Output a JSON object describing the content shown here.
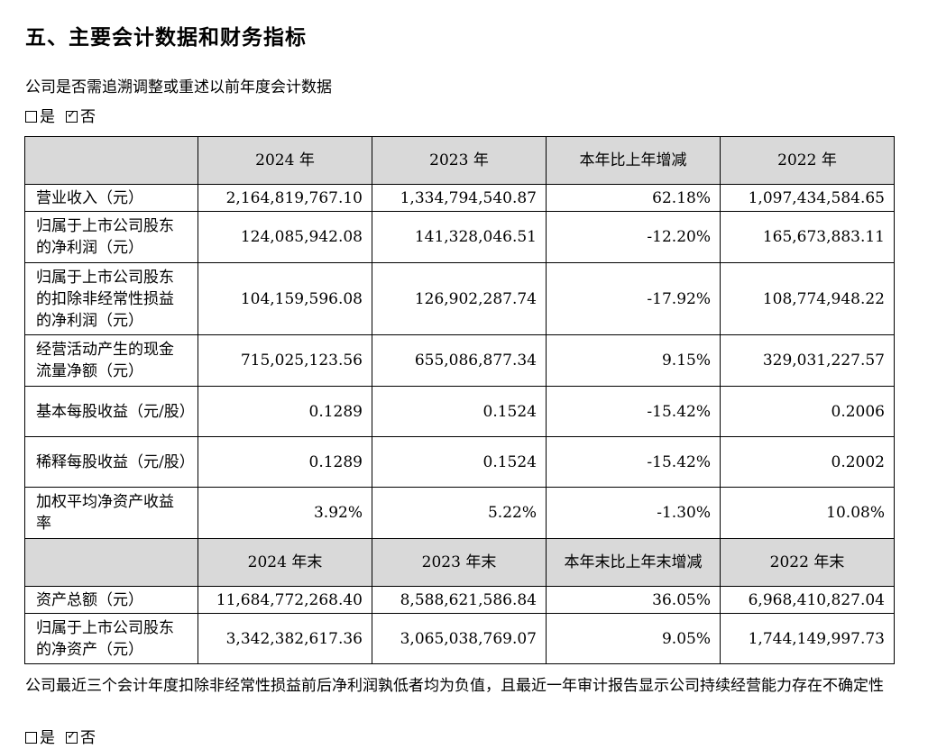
{
  "title": "五、主要会计数据和财务指标",
  "restate_question": "公司是否需追溯调整或重述以前年度会计数据",
  "restate_options": {
    "yes": "是",
    "no": "否"
  },
  "header1": [
    "",
    "2024 年",
    "2023 年",
    "本年比上年增减",
    "2022 年"
  ],
  "rows1": [
    {
      "label": "营业收入（元）",
      "values": [
        "2,164,819,767.10",
        "1,334,794,540.87",
        "62.18%",
        "1,097,434,584.65"
      ]
    },
    {
      "label": "归属于上市公司股东的净利润（元）",
      "values": [
        "124,085,942.08",
        "141,328,046.51",
        "-12.20%",
        "165,673,883.11"
      ]
    },
    {
      "label": "归属于上市公司股东的扣除非经常性损益的净利润（元）",
      "values": [
        "104,159,596.08",
        "126,902,287.74",
        "-17.92%",
        "108,774,948.22"
      ]
    },
    {
      "label": "经营活动产生的现金流量净额（元）",
      "values": [
        "715,025,123.56",
        "655,086,877.34",
        "9.15%",
        "329,031,227.57"
      ]
    },
    {
      "label": "基本每股收益（元/股）",
      "values": [
        "0.1289",
        "0.1524",
        "-15.42%",
        "0.2006"
      ]
    },
    {
      "label": "稀释每股收益（元/股）",
      "values": [
        "0.1289",
        "0.1524",
        "-15.42%",
        "0.2002"
      ]
    },
    {
      "label": "加权平均净资产收益率",
      "values": [
        "3.92%",
        "5.22%",
        "-1.30%",
        "10.08%"
      ]
    }
  ],
  "header2": [
    "",
    "2024 年末",
    "2023 年末",
    "本年末比上年末增减",
    "2022 年末"
  ],
  "rows2": [
    {
      "label": "资产总额（元）",
      "values": [
        "11,684,772,268.40",
        "8,588,621,586.84",
        "36.05%",
        "6,968,410,827.04"
      ]
    },
    {
      "label": "归属于上市公司股东的净资产（元）",
      "values": [
        "3,342,382,617.36",
        "3,065,038,769.07",
        "9.05%",
        "1,744,149,997.73"
      ]
    }
  ],
  "going_concern_text": "公司最近三个会计年度扣除非经常性损益前后净利润孰低者均为负值，且最近一年审计报告显示公司持续经营能力存在不确定性",
  "going_concern_options": {
    "yes": "是",
    "no": "否"
  }
}
